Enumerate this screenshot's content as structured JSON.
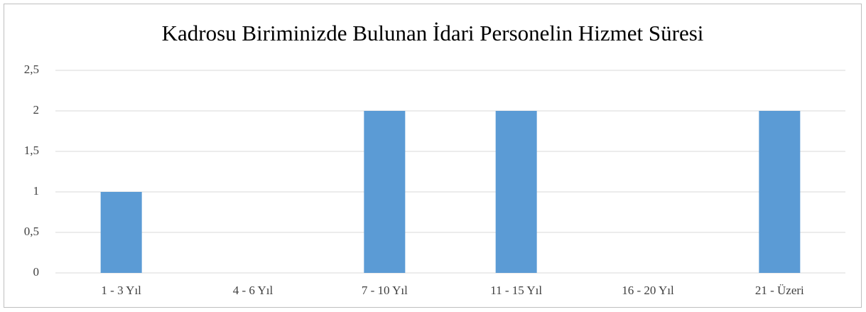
{
  "chart_data": {
    "type": "bar",
    "title": "Kadrosu Biriminizde Bulunan İdari Personelin Hizmet Süresi",
    "categories": [
      "1 - 3 Yıl",
      "4 - 6 Yıl",
      "7 - 10 Yıl",
      "11 - 15 Yıl",
      "16 - 20 Yıl",
      "21 - Üzeri"
    ],
    "values": [
      1,
      0,
      2,
      2,
      0,
      2
    ],
    "color": "#5b9bd5",
    "ylim": [
      0,
      2.5
    ],
    "yticks": [
      0,
      {
        "value": 0.5,
        "label": "0,5"
      },
      1,
      {
        "value": 1.5,
        "label": "1,5"
      },
      2,
      {
        "value": 2.5,
        "label": "2,5"
      }
    ],
    "grid": true
  }
}
